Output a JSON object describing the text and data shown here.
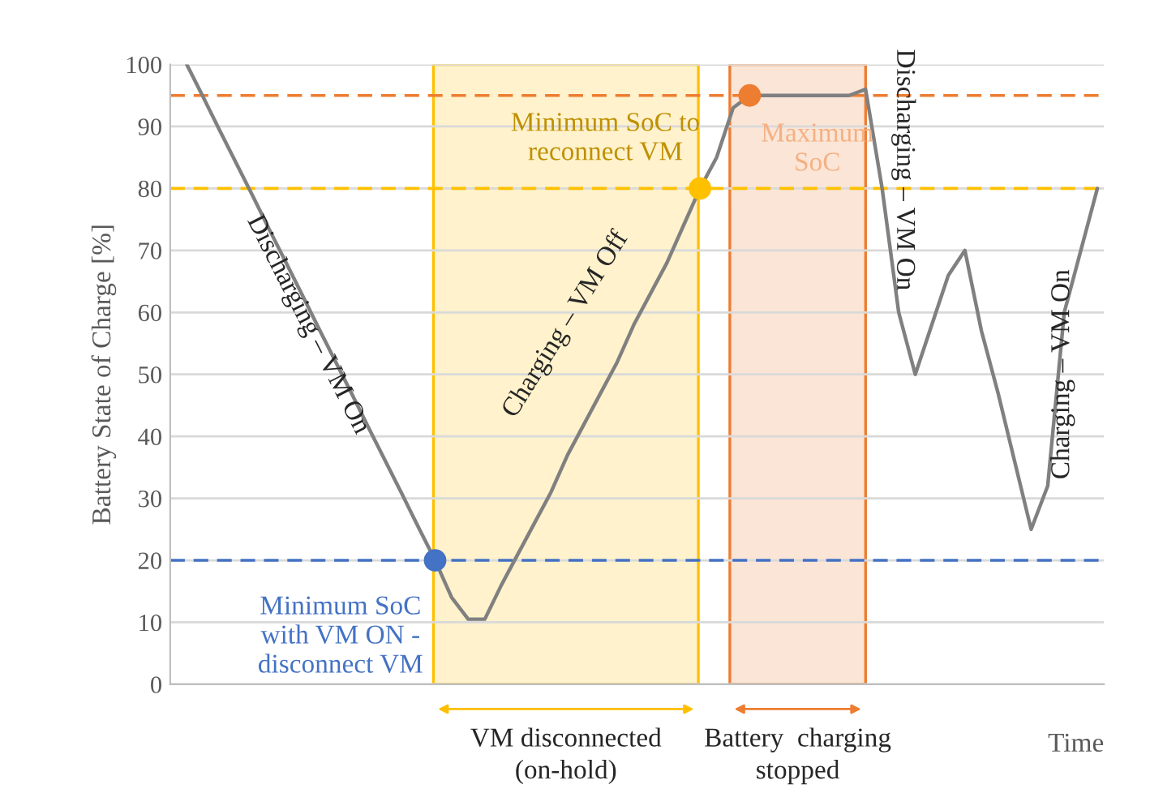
{
  "chart_data": {
    "type": "line",
    "ylabel": "Battery State of Charge [%]",
    "xlabel": "Time",
    "categories": [
      null,
      null,
      null,
      null,
      null,
      null,
      null,
      null,
      null,
      null,
      null,
      null,
      null,
      null,
      null,
      null,
      null,
      null,
      null,
      null,
      null,
      null,
      null,
      null,
      null,
      null,
      null,
      null,
      null,
      null,
      null,
      null,
      null,
      null,
      null,
      null,
      null,
      null,
      null,
      null,
      null,
      null,
      null,
      null,
      null,
      null,
      null,
      null,
      null,
      null,
      null,
      null,
      null,
      null,
      null,
      null
    ],
    "ylim": [
      0,
      100
    ],
    "yticks": [
      0,
      10,
      20,
      30,
      40,
      50,
      60,
      70,
      80,
      90,
      100
    ],
    "grid": "y",
    "series": [
      {
        "color": "#808080",
        "values": [
          100,
          94.7,
          89.3,
          84,
          78.7,
          73.3,
          68,
          62.7,
          57.3,
          52,
          46.7,
          41.3,
          36,
          30.7,
          25.3,
          20,
          14,
          10.5,
          10.5,
          16,
          21,
          26,
          31,
          37,
          42,
          47,
          52,
          58,
          63,
          68,
          74,
          80,
          85,
          93,
          95,
          95,
          95,
          95,
          95,
          95,
          95,
          96,
          80,
          60,
          50,
          58,
          66,
          70,
          57,
          47,
          36,
          25,
          32,
          60,
          70,
          80
        ]
      }
    ],
    "ref_lines": [
      {
        "axis": "y",
        "value": 95,
        "color": "#ed7d31",
        "line_style": "dashed"
      },
      {
        "axis": "y",
        "value": 80,
        "color": "#ffc000",
        "line_style": "dashed"
      },
      {
        "axis": "y",
        "value": 20,
        "color": "#4472c4",
        "line_style": "dashed"
      }
    ],
    "annotations": [
      {
        "text": "Minimum SoC\nwith VM ON -\ndisconnect VM",
        "y": 20
      },
      {
        "text": "Minimum SoC to\nreconnect VM",
        "y": 80
      },
      {
        "text": "Maximum\nSoC",
        "y": 95
      },
      "Discharging – VM On",
      "Charging – VM Off",
      "Discharging – VM On",
      "Charging – VM On",
      "VM disconnected\n(on-hold)",
      "Battery  charging\nstopped"
    ]
  }
}
